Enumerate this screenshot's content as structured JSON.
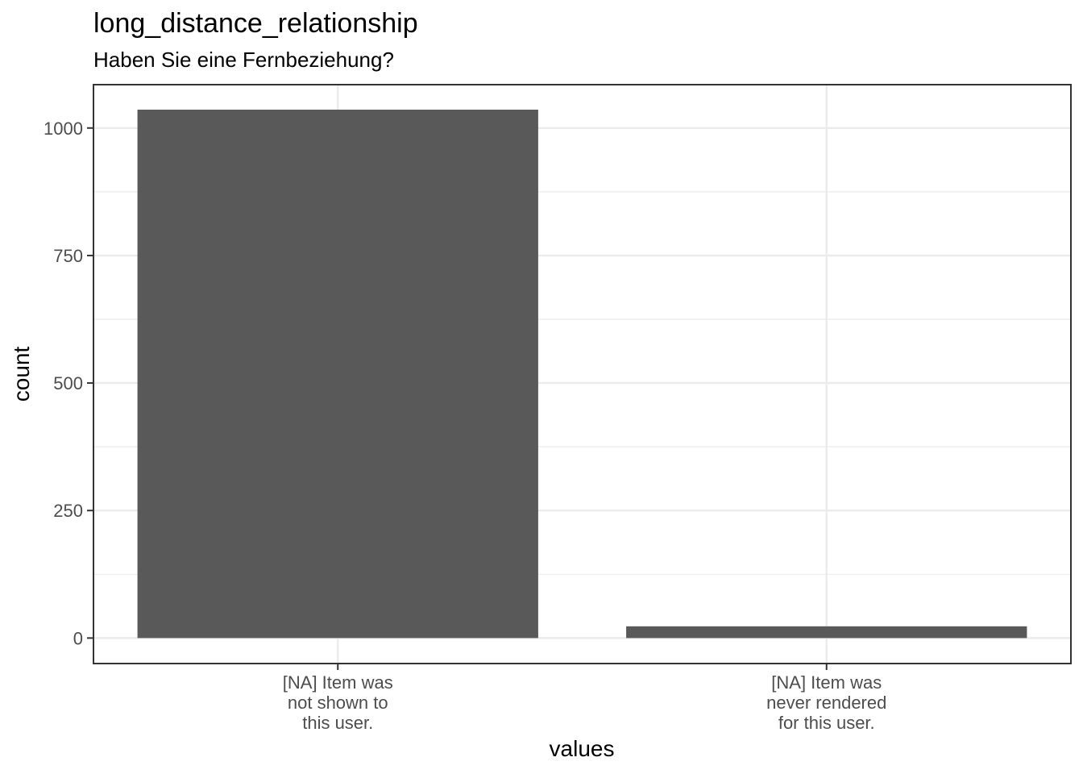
{
  "chart_data": {
    "type": "bar",
    "title": "long_distance_relationship",
    "subtitle": "Haben Sie eine Fernbeziehung?",
    "xlabel": "values",
    "ylabel": "count",
    "categories": [
      [
        "[NA] Item was",
        "not shown to",
        "this user."
      ],
      [
        "[NA] Item was",
        "never rendered",
        "for this user."
      ]
    ],
    "values": [
      1036,
      23
    ],
    "ylim": [
      -50,
      1085
    ],
    "yticks": [
      0,
      250,
      500,
      750,
      1000
    ],
    "ytick_labels": [
      "0",
      "250",
      "500",
      "750",
      "1000"
    ],
    "grid": true,
    "bar_color": "#595959"
  }
}
